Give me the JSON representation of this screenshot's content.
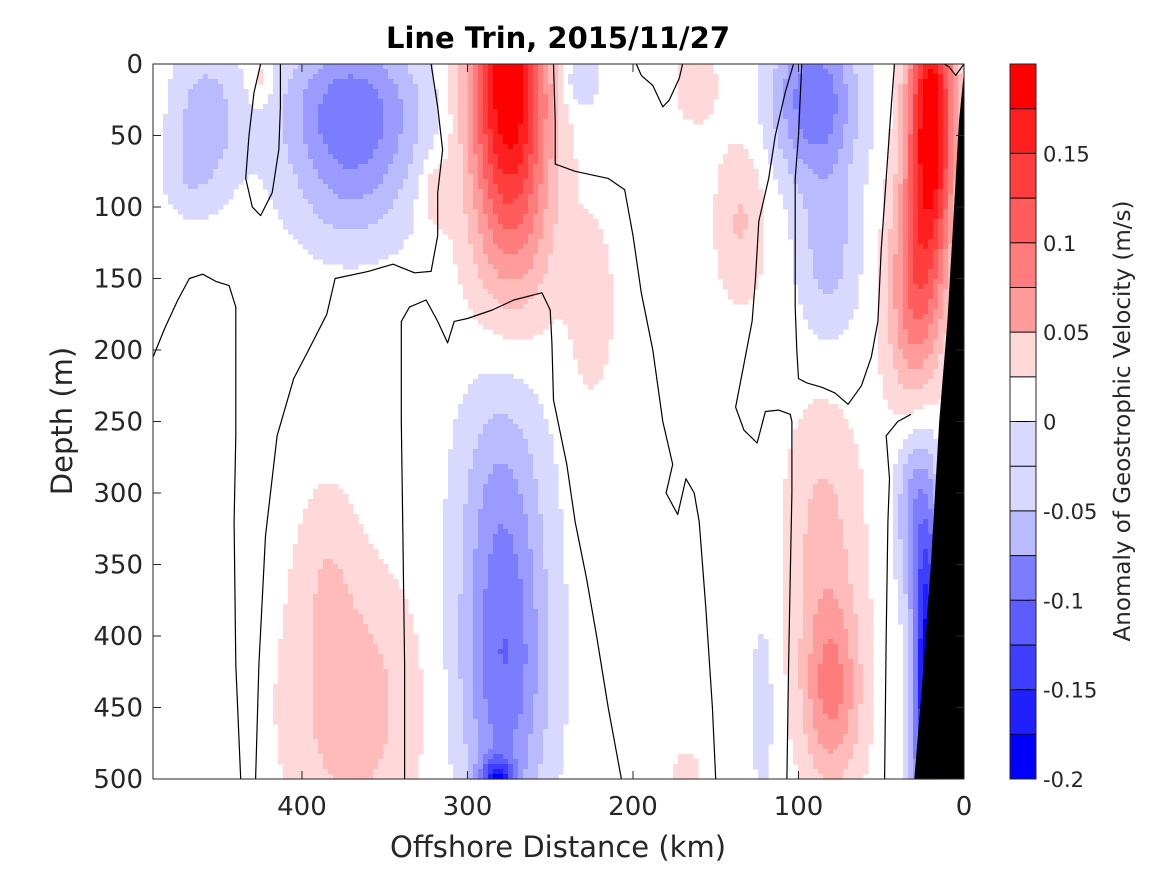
{
  "chart_data": {
    "type": "heatmap",
    "subtype": "filled-contour section",
    "title": "Line Trin, 2015/11/27",
    "xlabel": "Offshore Distance (km)",
    "ylabel": "Depth (m)",
    "colorbar_label": "Anomaly of Geostrophic Velocity (m/s)",
    "xlim": [
      490,
      0
    ],
    "x_reversed": true,
    "ylim": [
      0,
      500
    ],
    "y_reversed": true,
    "x_ticks": [
      400,
      300,
      200,
      100,
      0
    ],
    "y_ticks": [
      0,
      50,
      100,
      150,
      200,
      250,
      300,
      350,
      400,
      450,
      500
    ],
    "colorbar_range": [
      -0.2,
      0.2
    ],
    "colorbar_ticks": [
      0.15,
      0.1,
      0.05,
      0,
      -0.05,
      -0.1,
      -0.15,
      -0.2
    ],
    "colorbar_tick_labels": [
      "0.15",
      "0.1",
      "0.05",
      "0",
      "-0.05",
      "-0.1",
      "-0.15",
      "-0.2"
    ],
    "contour_step": 0.025,
    "colormap": "blue-white-red",
    "colors": {
      "negative_max": "#0000ff",
      "positive_max": "#ff0000",
      "zero_band": "#ffffff",
      "bathymetry": "#000000",
      "contour_line": "#000000"
    },
    "zero_contour_drawn": true,
    "bathymetry_mask": "black wedge at the right-hand (coastal) edge",
    "features": [
      {
        "kind": "positive_core",
        "x_center_km": 20,
        "depth_range_m": [
          0,
          230
        ],
        "peak": 0.2
      },
      {
        "kind": "positive_core",
        "x_center_km": 275,
        "depth_range_m": [
          0,
          160
        ],
        "peak": 0.2
      },
      {
        "kind": "negative_core",
        "x_center_km": 25,
        "depth_range_m": [
          250,
          500
        ],
        "peak": -0.2
      },
      {
        "kind": "negative_core",
        "x_center_km": 280,
        "depth_range_m": [
          220,
          500
        ],
        "peak": -0.1
      },
      {
        "kind": "negative_core",
        "x_center_km": 370,
        "depth_range_m": [
          0,
          110
        ],
        "peak": -0.1
      },
      {
        "kind": "negative_core",
        "x_center_km": 90,
        "depth_range_m": [
          0,
          180
        ],
        "peak": -0.1
      },
      {
        "kind": "positive_core",
        "x_center_km": 80,
        "depth_range_m": [
          260,
          500
        ],
        "peak": 0.075
      },
      {
        "kind": "positive_core",
        "x_center_km": 370,
        "depth_range_m": [
          280,
          500
        ],
        "peak": 0.05
      }
    ]
  }
}
